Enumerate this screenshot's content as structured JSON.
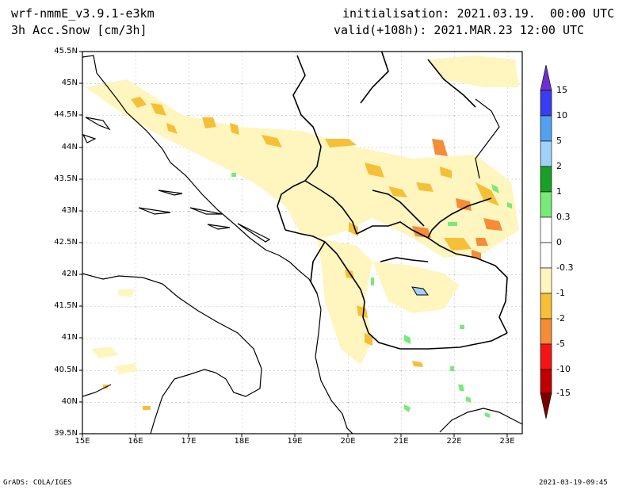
{
  "header": {
    "model": "wrf-nmmE_v3.9.1-e3km",
    "field": "3h Acc.Snow [cm/3h]",
    "init": "initialisation: 2021.03.19.  00:00 UTC",
    "valid": "valid(+108h): 2021.MAR.23 12:00 UTC"
  },
  "lat_labels": [
    "45.5N",
    "45N",
    "44.5N",
    "44N",
    "43.5N",
    "43N",
    "42.5N",
    "42N",
    "41.5N",
    "41N",
    "40.5N",
    "40N",
    "39.5N"
  ],
  "lon_labels": [
    "15E",
    "16E",
    "17E",
    "18E",
    "19E",
    "20E",
    "21E",
    "22E",
    "23E"
  ],
  "colorbar": {
    "labels": [
      "15",
      "10",
      "5",
      "2",
      "1",
      "0.3",
      "0",
      "-0.3",
      "-1",
      "-2",
      "-5",
      "-10",
      "-15"
    ],
    "colors": [
      "#6f2fd0",
      "#3a3cf0",
      "#54a0f0",
      "#a0d2f8",
      "#18a028",
      "#78ea78",
      "#ffffff",
      "#ffffff",
      "#fff5be",
      "#f5c037",
      "#f58c37",
      "#f51414",
      "#c00000",
      "#7a0000"
    ]
  },
  "footer": {
    "left": "GrADS: COLA/IGES",
    "right": "2021-03-19-09:45"
  }
}
